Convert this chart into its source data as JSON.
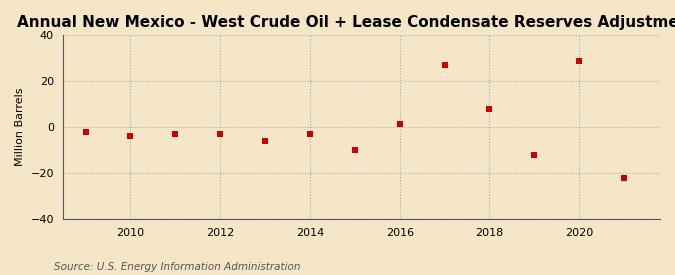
{
  "title": "Annual New Mexico - West Crude Oil + Lease Condensate Reserves Adjustments",
  "ylabel": "Million Barrels",
  "source": "Source: U.S. Energy Information Administration",
  "background_color": "#f5e6c8",
  "plot_background_color": "#f5e6c8",
  "years": [
    2009,
    2010,
    2011,
    2012,
    2013,
    2014,
    2015,
    2016,
    2017,
    2018,
    2019,
    2020,
    2021
  ],
  "values": [
    -2.0,
    -4.0,
    -3.0,
    -3.0,
    -6.0,
    -3.0,
    -10.0,
    1.5,
    27.0,
    8.0,
    -12.0,
    29.0,
    -22.0
  ],
  "marker_color": "#cc0000",
  "marker_size": 4,
  "ylim": [
    -40,
    40
  ],
  "yticks": [
    -40,
    -20,
    0,
    20,
    40
  ],
  "xlim": [
    2008.5,
    2021.8
  ],
  "xticks": [
    2010,
    2012,
    2014,
    2016,
    2018,
    2020
  ],
  "grid_color": "#aaaaaa",
  "grid_style": ":",
  "title_fontsize": 11,
  "label_fontsize": 8,
  "tick_fontsize": 8,
  "source_fontsize": 7.5
}
